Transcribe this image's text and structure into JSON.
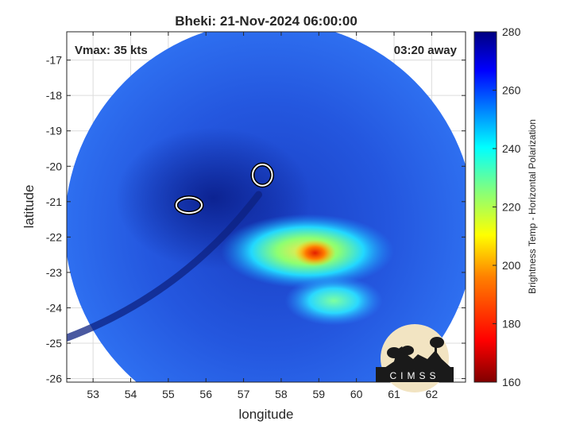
{
  "chart_data": {
    "type": "heatmap",
    "title": "Bheki: 21-Nov-2024 06:00:00",
    "annotations": {
      "vmax": "Vmax: 35 kts",
      "time_away": "03:20 away"
    },
    "xlabel": "longitude",
    "ylabel": "latitude",
    "xlim": [
      52.3,
      62.9
    ],
    "ylim": [
      -26.1,
      -16.2
    ],
    "x_ticks": [
      53,
      54,
      55,
      56,
      57,
      58,
      59,
      60,
      61,
      62
    ],
    "y_ticks": [
      -17,
      -18,
      -19,
      -20,
      -21,
      -22,
      -23,
      -24,
      -25,
      -26
    ],
    "grid": true,
    "colorbar": {
      "label": "Brightness Temp - Horizontal Polarization",
      "min": 160,
      "max": 280,
      "ticks": [
        280,
        260,
        240,
        220,
        200,
        180,
        160
      ],
      "colormap": [
        "#800000",
        "#ff0000",
        "#ff8000",
        "#ffff00",
        "#80ff80",
        "#00ffff",
        "#0080ff",
        "#0000ff",
        "#000080"
      ]
    },
    "swath": {
      "center_lon": 57.7,
      "center_lat": -21.7,
      "radius_deg": 5.45,
      "typical_value": 262
    },
    "features": [
      {
        "name": "warm band",
        "center_lon": 58.7,
        "center_lat": -22.4,
        "value": 230
      },
      {
        "name": "warm core",
        "center_lon": 58.9,
        "center_lat": -22.45,
        "value": 190
      },
      {
        "name": "warm patch south",
        "center_lon": 59.4,
        "center_lat": -23.8,
        "value": 225
      }
    ],
    "contours": [
      {
        "center_lon": 55.55,
        "center_lat": -21.1
      },
      {
        "center_lon": 57.5,
        "center_lat": -20.25
      }
    ],
    "logo": "CIMSS"
  }
}
